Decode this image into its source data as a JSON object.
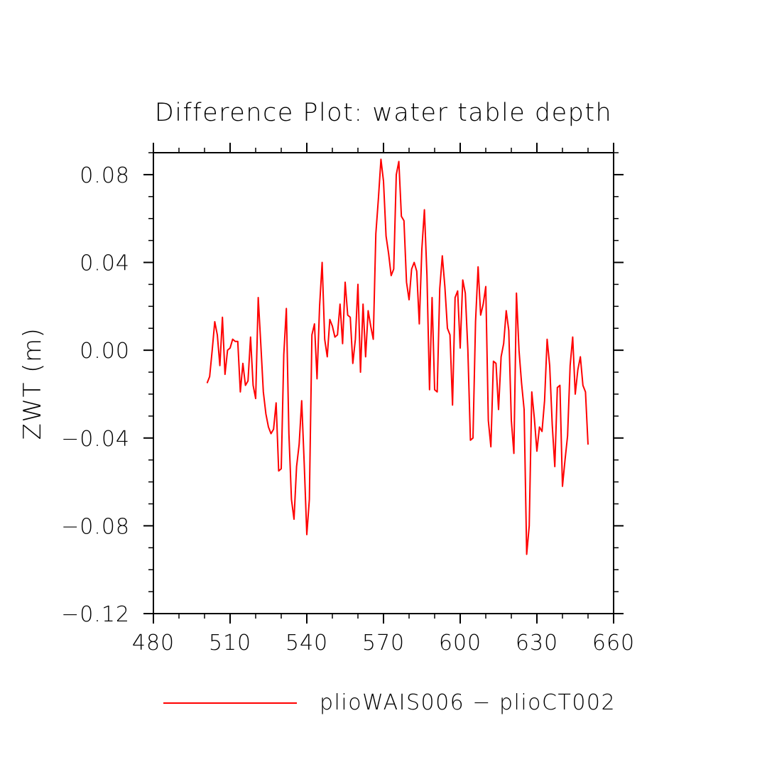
{
  "chart_data": {
    "type": "line",
    "title": "Difference Plot: water table depth",
    "ylabel": "ZWT (m)",
    "xlabel": "",
    "xlim": [
      480,
      660
    ],
    "ylim": [
      -0.12,
      0.09
    ],
    "x_ticks": [
      480,
      510,
      540,
      570,
      600,
      630,
      660
    ],
    "x_tick_labels": [
      "480",
      "510",
      "540",
      "570",
      "600",
      "630",
      "660"
    ],
    "y_ticks": [
      -0.12,
      -0.08,
      -0.04,
      0.0,
      0.04,
      0.08
    ],
    "y_tick_labels": [
      "−0.12",
      "−0.08",
      "−0.04",
      "0.00",
      "0.04",
      "0.08"
    ],
    "grid": false,
    "legend_position": "bottom",
    "series": [
      {
        "name": "plioWAIS006 − plioCT002",
        "color": "#ff0000",
        "x": [
          501,
          502,
          503,
          504,
          505,
          506,
          507,
          508,
          509,
          510,
          511,
          512,
          513,
          514,
          515,
          516,
          517,
          518,
          519,
          520,
          521,
          522,
          523,
          524,
          525,
          526,
          527,
          528,
          529,
          530,
          531,
          532,
          533,
          534,
          535,
          536,
          537,
          538,
          539,
          540,
          541,
          542,
          543,
          544,
          545,
          546,
          547,
          548,
          549,
          550,
          551,
          552,
          553,
          554,
          555,
          556,
          557,
          558,
          559,
          560,
          561,
          562,
          563,
          564,
          565,
          566,
          567,
          568,
          569,
          570,
          571,
          572,
          573,
          574,
          575,
          576,
          577,
          578,
          579,
          580,
          581,
          582,
          583,
          584,
          585,
          586,
          587,
          588,
          589,
          590,
          591,
          592,
          593,
          594,
          595,
          596,
          597,
          598,
          599,
          600,
          601,
          602,
          603,
          604,
          605,
          606,
          607,
          608,
          609,
          610,
          611,
          612,
          613,
          614,
          615,
          616,
          617,
          618,
          619,
          620,
          621,
          622,
          623,
          624,
          625,
          626,
          627,
          628,
          629,
          630,
          631,
          632,
          633,
          634,
          635,
          636,
          637,
          638,
          639,
          640,
          641,
          642,
          643,
          644,
          645,
          646,
          647,
          648,
          649,
          650
        ],
        "y": [
          -0.015,
          -0.012,
          0.0,
          0.013,
          0.007,
          -0.007,
          0.015,
          -0.011,
          0.0,
          0.001,
          0.005,
          0.004,
          0.004,
          -0.019,
          -0.006,
          -0.016,
          -0.014,
          0.006,
          -0.016,
          -0.022,
          0.024,
          0.003,
          -0.019,
          -0.029,
          -0.035,
          -0.038,
          -0.036,
          -0.024,
          -0.055,
          -0.054,
          -0.002,
          0.019,
          -0.038,
          -0.068,
          -0.077,
          -0.053,
          -0.043,
          -0.023,
          -0.052,
          -0.084,
          -0.068,
          0.007,
          0.012,
          -0.013,
          0.02,
          0.04,
          0.005,
          -0.003,
          0.014,
          0.011,
          0.006,
          0.007,
          0.021,
          0.003,
          0.031,
          0.016,
          0.015,
          -0.006,
          0.005,
          0.03,
          -0.01,
          0.021,
          -0.003,
          0.018,
          0.011,
          0.005,
          0.053,
          0.069,
          0.087,
          0.077,
          0.052,
          0.044,
          0.034,
          0.037,
          0.08,
          0.086,
          0.061,
          0.059,
          0.031,
          0.023,
          0.037,
          0.04,
          0.036,
          0.012,
          0.046,
          0.064,
          0.034,
          -0.018,
          0.024,
          -0.018,
          -0.019,
          0.028,
          0.043,
          0.029,
          0.01,
          0.007,
          -0.025,
          0.024,
          0.027,
          0.001,
          0.032,
          0.026,
          0.0,
          -0.041,
          -0.04,
          0.013,
          0.038,
          0.016,
          0.021,
          0.029,
          -0.032,
          -0.044,
          -0.005,
          -0.006,
          -0.027,
          -0.003,
          0.003,
          0.018,
          0.009,
          -0.032,
          -0.047,
          0.026,
          0.0,
          -0.015,
          -0.027,
          -0.093,
          -0.08,
          -0.019,
          -0.031,
          -0.046,
          -0.035,
          -0.037,
          -0.023,
          0.005,
          -0.007,
          -0.034,
          -0.053,
          -0.017,
          -0.016,
          -0.062,
          -0.05,
          -0.039,
          -0.007,
          0.006,
          -0.02,
          -0.009,
          -0.003,
          -0.016,
          -0.019,
          -0.043
        ]
      }
    ]
  }
}
